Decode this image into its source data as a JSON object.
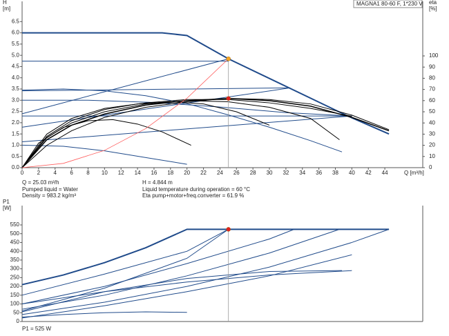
{
  "chart_data": [
    {
      "type": "line",
      "title": "MAGNA1 80-60 F, 1*230 V",
      "y_label": "H",
      "y_unit": "[m]",
      "y2_label": "eta",
      "y2_unit": "[%]",
      "x_label": "Q [m³/h]",
      "xlim": [
        0,
        48.6
      ],
      "ylim": [
        0,
        7.4
      ],
      "y2lim": [
        0,
        148.8
      ],
      "xticks": [
        0,
        2,
        4,
        6,
        8,
        10,
        12,
        14,
        16,
        18,
        20,
        22,
        24,
        26,
        28,
        30,
        32,
        34,
        36,
        38,
        40,
        42,
        44
      ],
      "yticks": [
        {
          "value": 0,
          "label": "0.0"
        },
        0.5,
        {
          "value": 1,
          "label": "1.0"
        },
        1.5,
        {
          "value": 2,
          "label": "2.0"
        },
        2.5,
        {
          "value": 3,
          "label": "3.0"
        },
        3.5,
        {
          "value": 4,
          "label": "4.0"
        },
        4.5,
        {
          "value": 5,
          "label": "5.0"
        },
        5.5,
        {
          "value": 6,
          "label": "6.0"
        },
        6.5
      ],
      "y2ticks": [
        0,
        10,
        20,
        30,
        40,
        50,
        60,
        70,
        80,
        90,
        100
      ],
      "series": [
        {
          "color": "#1f4a8a",
          "width": 2,
          "x": [
            0,
            17,
            20,
            25.03,
            39.5,
            44.5
          ],
          "values": [
            6.0,
            6.0,
            5.88,
            4.844,
            2.3,
            1.5
          ]
        },
        {
          "color": "#1f4a8a",
          "width": 1,
          "x": [
            0,
            25.03
          ],
          "values": [
            4.74,
            4.74
          ]
        },
        {
          "color": "#1f4a8a",
          "width": 1,
          "x": [
            0,
            25.03
          ],
          "values": [
            2.4,
            4.844
          ]
        },
        {
          "color": "#1f4a8a",
          "width": 1,
          "x": [
            0,
            32.5
          ],
          "values": [
            3.42,
            3.55
          ]
        },
        {
          "color": "#1f4a8a",
          "width": 1,
          "x": [
            0,
            32.5
          ],
          "values": [
            1.8,
            3.55
          ]
        },
        {
          "color": "#1f4a8a",
          "width": 1,
          "x": [
            0,
            5,
            10,
            15,
            20,
            25,
            30,
            35,
            38.8
          ],
          "values": [
            3.45,
            3.5,
            3.42,
            3.2,
            2.85,
            2.35,
            1.8,
            1.2,
            0.7
          ]
        },
        {
          "color": "#1f4a8a",
          "width": 1,
          "x": [
            0,
            40
          ],
          "values": [
            1.15,
            2.3
          ]
        },
        {
          "color": "#1f4a8a",
          "width": 1,
          "x": [
            0,
            40
          ],
          "values": [
            2.3,
            2.3
          ]
        },
        {
          "color": "#1f4a8a",
          "width": 1,
          "x": [
            0,
            5,
            10,
            15,
            20
          ],
          "values": [
            1.0,
            0.95,
            0.75,
            0.45,
            0.15
          ]
        },
        {
          "color": "#1f4a8a",
          "width": 1,
          "x": [
            0,
            8,
            16,
            24,
            32,
            40
          ],
          "values": [
            3.0,
            3.0,
            2.9,
            2.7,
            2.45,
            2.3
          ]
        },
        {
          "color": "#000000",
          "width": 1.5,
          "axis": "y2",
          "x": [
            0,
            3,
            6,
            10,
            15,
            20,
            25,
            30,
            35,
            40,
            44.5
          ],
          "values": [
            0,
            25,
            38,
            48,
            56,
            60,
            61.9,
            60,
            55,
            45,
            33
          ]
        },
        {
          "color": "#000000",
          "width": 1,
          "axis": "y2",
          "x": [
            0,
            3,
            6,
            10,
            15,
            20,
            25,
            30,
            35,
            38.5
          ],
          "values": [
            0,
            27,
            40,
            50,
            57,
            60,
            59,
            54,
            44,
            25
          ]
        },
        {
          "color": "#000000",
          "width": 1,
          "axis": "y2",
          "x": [
            0,
            3,
            6,
            10,
            14,
            18,
            22,
            26,
            30
          ],
          "values": [
            0,
            28,
            42,
            52,
            57,
            59,
            57,
            50,
            38
          ]
        },
        {
          "color": "#000000",
          "width": 1,
          "axis": "y2",
          "x": [
            0,
            2,
            5,
            8,
            11,
            14,
            17,
            20.5
          ],
          "values": [
            0,
            22,
            36,
            42,
            43,
            39,
            32,
            20
          ]
        },
        {
          "color": "#000000",
          "width": 1,
          "axis": "y2",
          "x": [
            0,
            3,
            6,
            10,
            15,
            20,
            25,
            30,
            35,
            40
          ],
          "values": [
            0,
            30,
            44,
            53,
            58,
            61,
            61,
            58,
            53,
            46
          ]
        },
        {
          "color": "#000000",
          "width": 1,
          "axis": "y2",
          "x": [
            0,
            3,
            6,
            10,
            15,
            20,
            25,
            30,
            35,
            40,
            44.5
          ],
          "values": [
            0,
            20,
            33,
            45,
            54,
            59,
            62,
            61,
            57,
            47,
            34
          ]
        },
        {
          "color": "#ff5a5a",
          "width": 0.8,
          "x": [
            0,
            5,
            10,
            15,
            20,
            25.03
          ],
          "values": [
            0,
            0.19,
            0.77,
            1.74,
            3.09,
            4.844
          ]
        }
      ],
      "points": [
        {
          "x": 25.03,
          "y": 4.844,
          "color": "#f5a623"
        },
        {
          "x": 25.03,
          "y": 61.9,
          "axis": "y2",
          "color": "#e02020"
        }
      ],
      "annotations": [
        "Q = 25.03 m³/h",
        "Pumped liquid = Water",
        "Density = 983.2 kg/m³",
        "H = 4.844 m",
        "Liquid temperature during operation = 60 °C",
        "Eta pump+motor+freq.converter = 61.9 %"
      ]
    },
    {
      "type": "line",
      "y_label": "P1",
      "y_unit": "[W]",
      "xlim": [
        0,
        48.6
      ],
      "ylim": [
        0,
        660
      ],
      "yticks": [
        0,
        50,
        100,
        150,
        200,
        250,
        300,
        350,
        400,
        450,
        500,
        550
      ],
      "series": [
        {
          "color": "#1f4a8a",
          "width": 2,
          "x": [
            0,
            5,
            10,
            15,
            20,
            25.03,
            44.5
          ],
          "values": [
            210,
            265,
            335,
            420,
            525,
            525,
            525
          ]
        },
        {
          "color": "#1f4a8a",
          "width": 1,
          "x": [
            0,
            10,
            20,
            25.03
          ],
          "values": [
            150,
            270,
            400,
            525
          ]
        },
        {
          "color": "#1f4a8a",
          "width": 1,
          "x": [
            0,
            10,
            20,
            30,
            33
          ],
          "values": [
            100,
            200,
            330,
            470,
            525
          ]
        },
        {
          "color": "#1f4a8a",
          "width": 1,
          "x": [
            0,
            10,
            20,
            30,
            38.5
          ],
          "values": [
            70,
            150,
            260,
            390,
            525
          ]
        },
        {
          "color": "#1f4a8a",
          "width": 1,
          "x": [
            0,
            10,
            20,
            30,
            40,
            44.5
          ],
          "values": [
            40,
            110,
            200,
            310,
            450,
            525
          ]
        },
        {
          "color": "#1f4a8a",
          "width": 1,
          "x": [
            0,
            10,
            20,
            25.03
          ],
          "values": [
            60,
            190,
            360,
            525
          ]
        },
        {
          "color": "#1f4a8a",
          "width": 1,
          "x": [
            0,
            10,
            20,
            30,
            38.8
          ],
          "values": [
            55,
            170,
            245,
            285,
            290
          ]
        },
        {
          "color": "#1f4a8a",
          "width": 1,
          "x": [
            0,
            10,
            20,
            30,
            40
          ],
          "values": [
            100,
            170,
            225,
            265,
            290
          ]
        },
        {
          "color": "#1f4a8a",
          "width": 1,
          "x": [
            0,
            5,
            10,
            15,
            20
          ],
          "values": [
            25,
            40,
            50,
            55,
            52
          ]
        },
        {
          "color": "#1f4a8a",
          "width": 1,
          "x": [
            0,
            10,
            20,
            30,
            40
          ],
          "values": [
            20,
            90,
            170,
            260,
            380
          ]
        }
      ],
      "points": [
        {
          "x": 25.03,
          "y": 525,
          "color": "#e02020"
        }
      ],
      "annotations": [
        "P1 = 525 W"
      ]
    }
  ]
}
